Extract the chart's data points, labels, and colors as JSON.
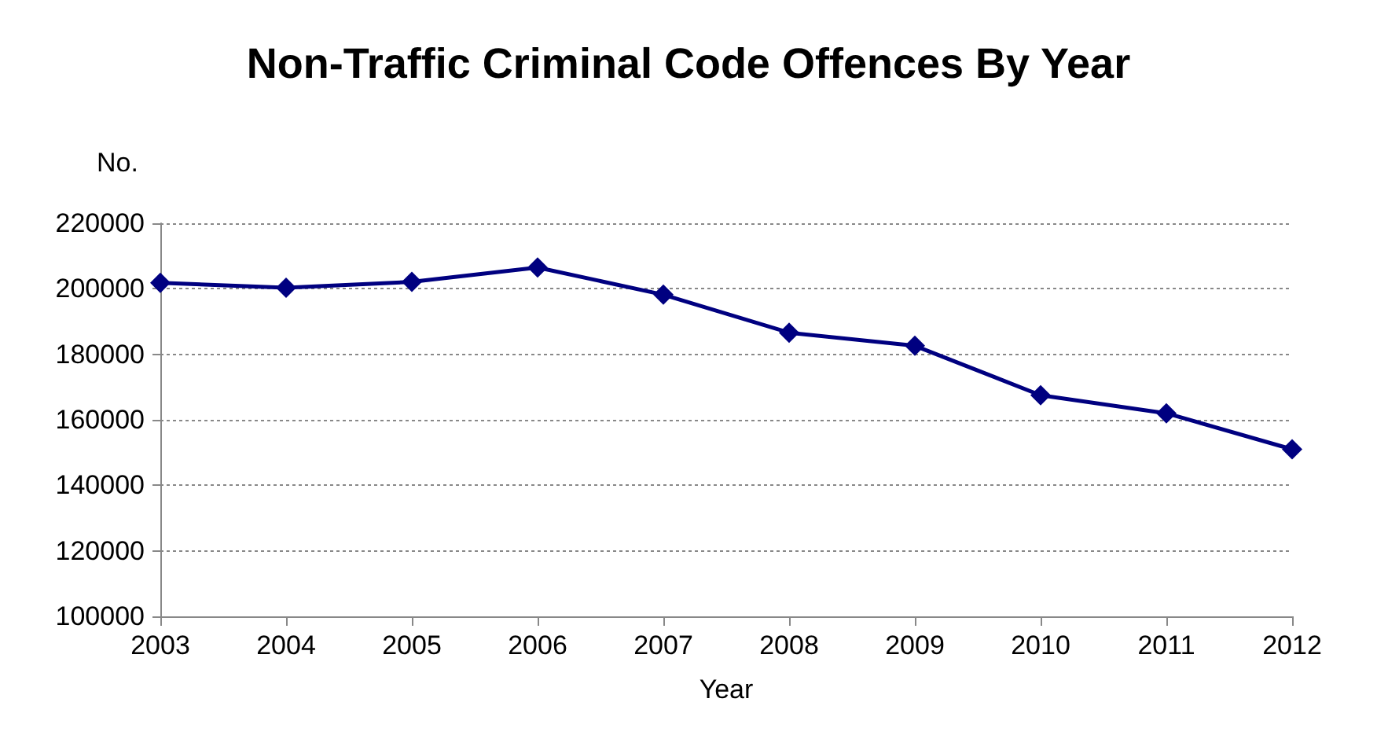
{
  "chart_data": {
    "type": "line",
    "title": "Non-Traffic Criminal Code Offences By Year",
    "xlabel": "Year",
    "ylabel": "No.",
    "categories": [
      "2003",
      "2004",
      "2005",
      "2006",
      "2007",
      "2008",
      "2009",
      "2010",
      "2011",
      "2012"
    ],
    "series": [
      {
        "color": "#000080",
        "values": [
          201800,
          200300,
          202100,
          206500,
          198200,
          186600,
          182600,
          167500,
          162000,
          151000
        ]
      }
    ],
    "ylim": [
      100000,
      220000
    ],
    "yticks": [
      100000,
      120000,
      140000,
      160000,
      180000,
      200000,
      220000
    ],
    "grid": "y",
    "marker": "diamond",
    "line_style": "solid"
  }
}
